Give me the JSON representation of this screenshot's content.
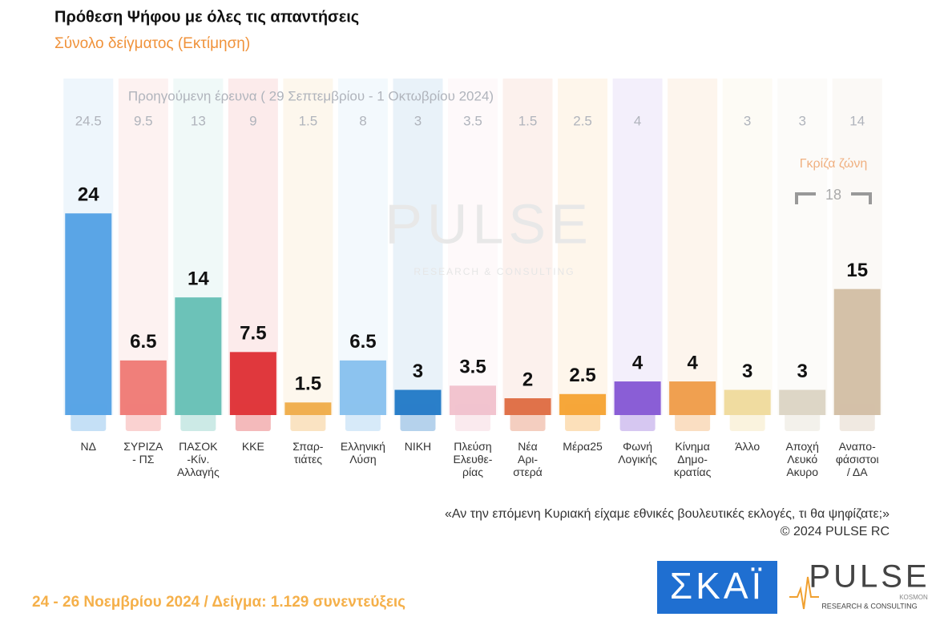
{
  "chart_data": {
    "type": "bar",
    "title": "Πρόθεση Ψήφου με όλες τις απαντήσεις",
    "subtitle": "Σύνολο δείγματος   (Εκτίμηση)",
    "categories": [
      "ΝΔ",
      "ΣΥΡΙΖΑ\n- ΠΣ",
      "ΠΑΣΟΚ\n-Κίν.\nΑλλαγής",
      "ΚΚΕ",
      "Σπαρ-\nτιάτες",
      "Ελληνική\nΛύση",
      "ΝΙΚΗ",
      "Πλεύση\nΕλευθε-\nρίας",
      "Νέα\nΑρι-\nστερά",
      "Μέρα25",
      "Φωνή\nΛογικής",
      "Κίνημα\nΔημο-\nκρατίας",
      "Άλλο",
      "Αποχή\nΛευκό\nΑκυρο",
      "Αναπο-\nφάσιστοι\n/ ΔΑ"
    ],
    "values": [
      24,
      6.5,
      14,
      7.5,
      1.5,
      6.5,
      3,
      3.5,
      2,
      2.5,
      4,
      4,
      3,
      3,
      15
    ],
    "colors": [
      "#5aa5e6",
      "#f07f7a",
      "#6cc2b8",
      "#e0383d",
      "#f0b050",
      "#8cc3ef",
      "#2a7fc9",
      "#f2c4cf",
      "#e0724a",
      "#f6a73a",
      "#8a5ed6",
      "#f0a050",
      "#f0dca0",
      "#ddd6c6",
      "#d4c1a8"
    ],
    "previous": {
      "label": "Προηγούμενη έρευνα ( 29 Σεπτεμβρίου - 1 Οκτωβρίου 2024)",
      "values": [
        24.5,
        9.5,
        13,
        9,
        1.5,
        8,
        3,
        3.5,
        1.5,
        2.5,
        4,
        null,
        3,
        3,
        14
      ]
    },
    "grey_zone": {
      "label": "Γκρίζα ζώνη",
      "value": 18
    },
    "ylim": [
      0,
      41
    ],
    "question": "«Αν την επόμενη Κυριακή είχαμε εθνικές βουλευτικές εκλογές, τι θα ψηφίζατε;»",
    "copyright": "©  2024  PULSE RC",
    "footer": "24 - 26 Νοεμβρίου 2024  /  Δείγμα:  1.129 συνεντεύξεις",
    "logos": {
      "skai": "ΣΚΑΪ",
      "pulse": "PULSE",
      "kosmon": "KOSMON",
      "tagline": "RESEARCH & CONSULTING"
    }
  }
}
